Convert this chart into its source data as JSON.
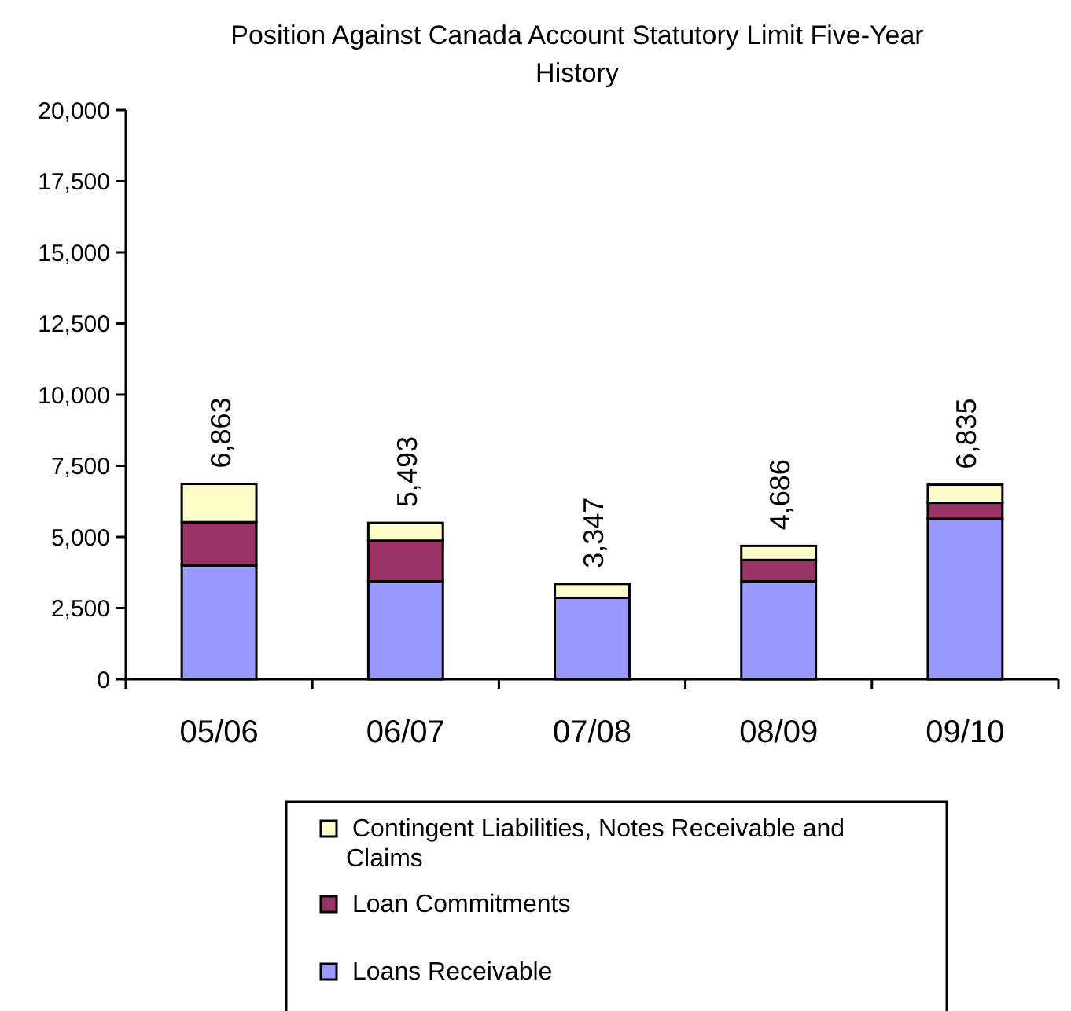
{
  "chart_data": {
    "type": "bar",
    "stacked": true,
    "title": "Position Against Canada Account Statutory Limit Five-Year History",
    "categories": [
      "05/06",
      "06/07",
      "07/08",
      "08/09",
      "09/10"
    ],
    "series": [
      {
        "name": "Loans Receivable",
        "color": "#9999ff",
        "values": [
          4000,
          3440,
          2860,
          3440,
          5640
        ]
      },
      {
        "name": "Loan Commitments",
        "color": "#993366",
        "values": [
          1520,
          1430,
          0,
          750,
          560
        ]
      },
      {
        "name": "Contingent Liabilities, Notes Receivable and Claims",
        "color": "#ffffcc",
        "values": [
          1343,
          623,
          487,
          496,
          635
        ]
      }
    ],
    "totals": [
      "6,863",
      "5,493",
      "3,347",
      "4,686",
      "6,835"
    ],
    "ylim": [
      0,
      20000
    ],
    "yticks": [
      {
        "value": 0,
        "label": "0"
      },
      {
        "value": 2500,
        "label": "2,500"
      },
      {
        "value": 5000,
        "label": "5,000"
      },
      {
        "value": 7500,
        "label": "7,500"
      },
      {
        "value": 10000,
        "label": "10,000"
      },
      {
        "value": 12500,
        "label": "12,500"
      },
      {
        "value": 15000,
        "label": "15,000"
      },
      {
        "value": 17500,
        "label": "17,500"
      },
      {
        "value": 20000,
        "label": "20,000"
      }
    ],
    "grid": false,
    "legend": "bottom"
  }
}
